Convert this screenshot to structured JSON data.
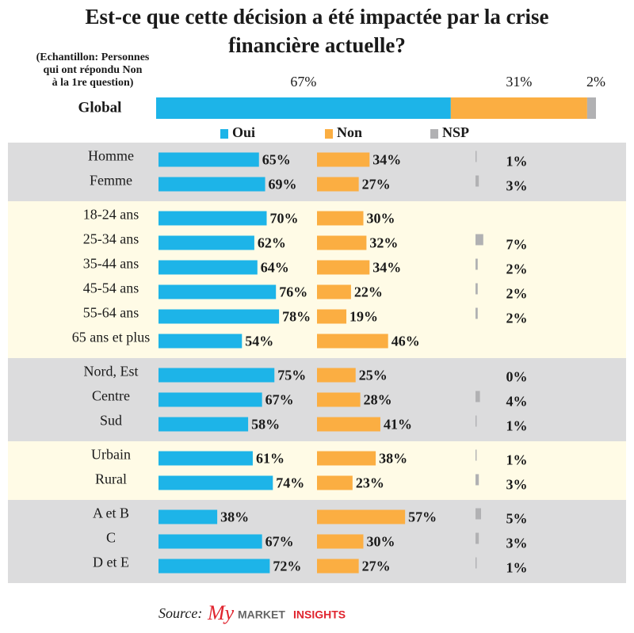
{
  "chart_data": {
    "type": "bar",
    "title": [
      "Est-ce que cette décision a été impactée par la crise",
      "financière actuelle?"
    ],
    "note": [
      "(Echantillon: Personnes",
      "qui ont répondu Non",
      "à la 1re question)"
    ],
    "series": [
      {
        "name": "Oui",
        "color": "#1db4e8"
      },
      {
        "name": "Non",
        "color": "#fbae42"
      },
      {
        "name": "NSP",
        "color": "#b1b1b3"
      }
    ],
    "global": {
      "category": "Global",
      "values": [
        67,
        31,
        2
      ],
      "value_labels": [
        "67%",
        "31%",
        "2%"
      ]
    },
    "groups": [
      {
        "color": "#dcdcdd",
        "categories": [
          "Homme",
          "Femme"
        ],
        "values": [
          [
            65,
            34,
            1
          ],
          [
            69,
            27,
            3
          ]
        ],
        "value_labels": [
          [
            "65%",
            "34%",
            "1%"
          ],
          [
            "69%",
            "27%",
            "3%"
          ]
        ]
      },
      {
        "color": "#fffbe6",
        "categories": [
          "18-24 ans",
          "25-34 ans",
          "35-44 ans",
          "45-54 ans",
          "55-64 ans",
          "65 ans et plus"
        ],
        "values": [
          [
            70,
            30,
            null
          ],
          [
            62,
            32,
            7
          ],
          [
            64,
            34,
            2
          ],
          [
            76,
            22,
            2
          ],
          [
            78,
            19,
            2
          ],
          [
            54,
            46,
            null
          ]
        ],
        "value_labels": [
          [
            "70%",
            "30%",
            null
          ],
          [
            "62%",
            "32%",
            "7%"
          ],
          [
            "64%",
            "34%",
            "2%"
          ],
          [
            "76%",
            "22%",
            "2%"
          ],
          [
            "78%",
            "19%",
            "2%"
          ],
          [
            "54%",
            "46%",
            null
          ]
        ]
      },
      {
        "color": "#dcdcdd",
        "categories": [
          "Nord, Est",
          "Centre",
          "Sud"
        ],
        "values": [
          [
            75,
            25,
            0
          ],
          [
            67,
            28,
            4
          ],
          [
            58,
            41,
            1
          ]
        ],
        "value_labels": [
          [
            "75%",
            "25%",
            "0%"
          ],
          [
            "67%",
            "28%",
            "4%"
          ],
          [
            "58%",
            "41%",
            "1%"
          ]
        ]
      },
      {
        "color": "#fffbe6",
        "categories": [
          "Urbain",
          "Rural"
        ],
        "values": [
          [
            61,
            38,
            1
          ],
          [
            74,
            23,
            3
          ]
        ],
        "value_labels": [
          [
            "61%",
            "38%",
            "1%"
          ],
          [
            "74%",
            "23%",
            "3%"
          ]
        ]
      },
      {
        "color": "#dcdcdd",
        "categories": [
          "A et B",
          "C",
          "D et E"
        ],
        "values": [
          [
            38,
            57,
            5
          ],
          [
            67,
            30,
            3
          ],
          [
            72,
            27,
            1
          ]
        ],
        "value_labels": [
          [
            "38%",
            "57%",
            "5%"
          ],
          [
            "67%",
            "30%",
            "3%"
          ],
          [
            "72%",
            "27%",
            "1%"
          ]
        ]
      }
    ],
    "source": "Source:",
    "logo": [
      "My",
      "MARKET",
      "INSIGHTS"
    ]
  }
}
